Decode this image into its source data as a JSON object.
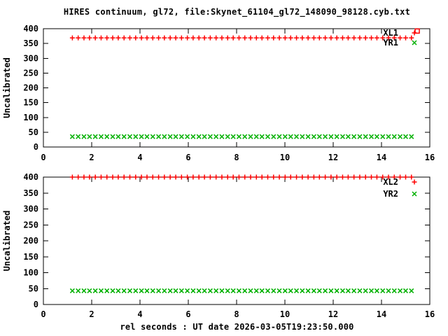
{
  "title": "HIRES continuum, gl72, file:Skynet_61104_gl72_148090_98128.cyb.txt",
  "xlabel": "rel seconds : UT date 2026-03-05T19:23:50.000",
  "colors": {
    "series_red": "#ff0000",
    "series_green": "#00b000",
    "frame": "#000000",
    "background": "#ffffff"
  },
  "chart_data": [
    {
      "type": "scatter",
      "panel": "top",
      "ylabel": "Uncalibrated",
      "xlim": [
        0,
        16
      ],
      "ylim": [
        0,
        400
      ],
      "xticks": [
        0,
        2,
        4,
        6,
        8,
        10,
        12,
        14,
        16
      ],
      "yticks": [
        0,
        50,
        100,
        150,
        200,
        250,
        300,
        350,
        400
      ],
      "grid": false,
      "legend_position": "top-right",
      "x": [
        1.2,
        1.44,
        1.68,
        1.91,
        2.15,
        2.39,
        2.63,
        2.87,
        3.1,
        3.34,
        3.58,
        3.82,
        4.06,
        4.29,
        4.53,
        4.77,
        5.01,
        5.25,
        5.48,
        5.72,
        5.96,
        6.2,
        6.44,
        6.67,
        6.91,
        7.15,
        7.39,
        7.63,
        7.86,
        8.1,
        8.34,
        8.58,
        8.82,
        9.05,
        9.29,
        9.53,
        9.77,
        10.01,
        10.24,
        10.48,
        10.72,
        10.96,
        11.2,
        11.43,
        11.67,
        11.91,
        12.15,
        12.39,
        12.62,
        12.86,
        13.1,
        13.34,
        13.58,
        13.81,
        14.05,
        14.29,
        14.53,
        14.77,
        15.0,
        15.24
      ],
      "series": [
        {
          "name": "XL1",
          "marker": "plus-marker",
          "color": "#ff0000",
          "y_constant": 369
        },
        {
          "name": "YR1",
          "marker": "cross-marker",
          "color": "#00b000",
          "y_constant": 35
        }
      ],
      "stray_point": {
        "series": "XL1",
        "marker": "open-square-marker",
        "color": "#ff0000",
        "x": 15.48,
        "y": 392
      }
    },
    {
      "type": "scatter",
      "panel": "bottom",
      "ylabel": "Uncalibrated",
      "xlim": [
        0,
        16
      ],
      "ylim": [
        0,
        400
      ],
      "xticks": [
        0,
        2,
        4,
        6,
        8,
        10,
        12,
        14,
        16
      ],
      "yticks": [
        0,
        50,
        100,
        150,
        200,
        250,
        300,
        350,
        400
      ],
      "grid": false,
      "legend_position": "top-right",
      "x": [
        1.2,
        1.44,
        1.68,
        1.91,
        2.15,
        2.39,
        2.63,
        2.87,
        3.1,
        3.34,
        3.58,
        3.82,
        4.06,
        4.29,
        4.53,
        4.77,
        5.01,
        5.25,
        5.48,
        5.72,
        5.96,
        6.2,
        6.44,
        6.67,
        6.91,
        7.15,
        7.39,
        7.63,
        7.86,
        8.1,
        8.34,
        8.58,
        8.82,
        9.05,
        9.29,
        9.53,
        9.77,
        10.01,
        10.24,
        10.48,
        10.72,
        10.96,
        11.2,
        11.43,
        11.67,
        11.91,
        12.15,
        12.39,
        12.62,
        12.86,
        13.1,
        13.34,
        13.58,
        13.81,
        14.05,
        14.29,
        14.53,
        14.77,
        15.0,
        15.24
      ],
      "series": [
        {
          "name": "XL2",
          "marker": "plus-marker",
          "color": "#ff0000",
          "y_constant": 400
        },
        {
          "name": "YR2",
          "marker": "cross-marker",
          "color": "#00b000",
          "y_constant": 43
        }
      ]
    }
  ]
}
